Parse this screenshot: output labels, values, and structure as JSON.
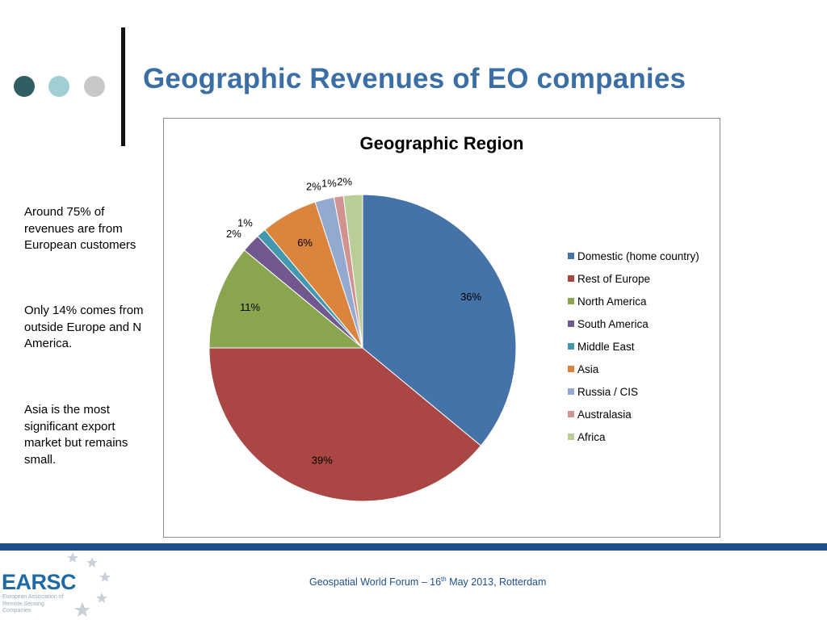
{
  "slide": {
    "title": "Geographic Revenues of EO companies",
    "bullets": [
      "Around 75% of revenues are from European customers",
      "Only 14% comes from outside Europe and N America.",
      "Asia is the most significant export market but remains small."
    ],
    "footer": {
      "event": "Geospatial World Forum – 16",
      "sup": "th",
      "rest": " May 2013, Rotterdam"
    },
    "logo": {
      "name": "EARSC",
      "subtitle": "European Association of Remote Sensing Companies"
    }
  },
  "chart_data": {
    "type": "pie",
    "title": "Geographic Region",
    "legend_position": "right",
    "slices": [
      {
        "label": "Domestic (home country)",
        "value": 36,
        "display": "36%",
        "color": "#4572a7"
      },
      {
        "label": "Rest of Europe",
        "value": 39,
        "display": "39%",
        "color": "#aa4643"
      },
      {
        "label": "North America",
        "value": 11,
        "display": "11%",
        "color": "#89a54e"
      },
      {
        "label": "South America",
        "value": 2,
        "display": "2%",
        "color": "#71588f"
      },
      {
        "label": "Middle East",
        "value": 1,
        "display": "1%",
        "color": "#4198af"
      },
      {
        "label": "Asia",
        "value": 6,
        "display": "6%",
        "color": "#db843d"
      },
      {
        "label": "Russia / CIS",
        "value": 2,
        "display": "2%",
        "color": "#93a9cf"
      },
      {
        "label": "Australasia",
        "value": 1,
        "display": "1%",
        "color": "#d19392"
      },
      {
        "label": "Africa",
        "value": 2,
        "display": "2%",
        "color": "#b9cd96"
      }
    ]
  }
}
